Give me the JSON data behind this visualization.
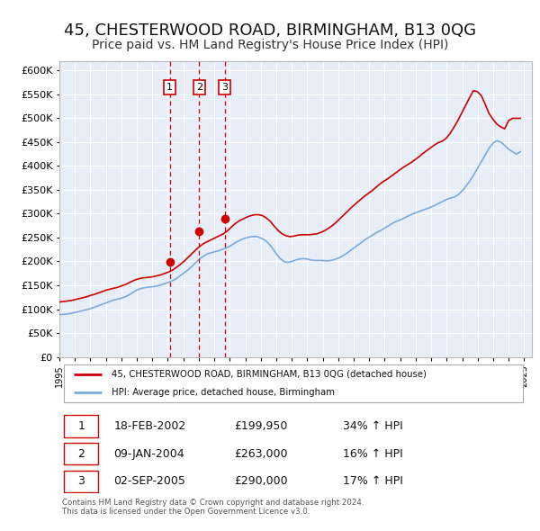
{
  "title": "45, CHESTERWOOD ROAD, BIRMINGHAM, B13 0QG",
  "subtitle": "Price paid vs. HM Land Registry's House Price Index (HPI)",
  "title_fontsize": 13,
  "subtitle_fontsize": 10,
  "bg_color": "#ffffff",
  "plot_bg_color": "#e8eef8",
  "grid_color": "#ffffff",
  "ylim": [
    0,
    620000
  ],
  "yticks": [
    0,
    50000,
    100000,
    150000,
    200000,
    250000,
    300000,
    350000,
    400000,
    450000,
    500000,
    550000,
    600000
  ],
  "xlim_start": 1995.0,
  "xlim_end": 2025.5,
  "legend_label_red": "45, CHESTERWOOD ROAD, BIRMINGHAM, B13 0QG (detached house)",
  "legend_label_blue": "HPI: Average price, detached house, Birmingham",
  "sale_dates": [
    2002.12,
    2004.03,
    2005.67
  ],
  "sale_prices": [
    199950,
    263000,
    290000
  ],
  "sale_labels": [
    "1",
    "2",
    "3"
  ],
  "vline_color": "#cc0000",
  "dot_color": "#cc0000",
  "red_line_color": "#cc0000",
  "blue_line_color": "#7aaadd",
  "table_rows": [
    [
      "1",
      "18-FEB-2002",
      "£199,950",
      "34% ↑ HPI"
    ],
    [
      "2",
      "09-JAN-2004",
      "£263,000",
      "16% ↑ HPI"
    ],
    [
      "3",
      "02-SEP-2005",
      "£290,000",
      "17% ↑ HPI"
    ]
  ],
  "footer_text": "Contains HM Land Registry data © Crown copyright and database right 2024.\nThis data is licensed under the Open Government Licence v3.0.",
  "hpi_y": [
    88000,
    89000,
    90000,
    91000,
    93000,
    95000,
    97000,
    99000,
    101000,
    104000,
    107000,
    110000,
    113000,
    116000,
    119000,
    121000,
    123000,
    126000,
    130000,
    135000,
    140000,
    143000,
    145000,
    146000,
    147000,
    148000,
    150000,
    153000,
    156000,
    159000,
    163000,
    169000,
    175000,
    181000,
    188000,
    196000,
    204000,
    210000,
    215000,
    218000,
    220000,
    222000,
    225000,
    228000,
    232000,
    237000,
    242000,
    246000,
    249000,
    251000,
    252000,
    252000,
    249000,
    245000,
    238000,
    228000,
    216000,
    206000,
    200000,
    198000,
    200000,
    203000,
    205000,
    206000,
    205000,
    203000,
    202000,
    202000,
    202000,
    201000,
    202000,
    204000,
    207000,
    211000,
    216000,
    222000,
    228000,
    234000,
    240000,
    246000,
    251000,
    256000,
    261000,
    265000,
    270000,
    275000,
    280000,
    284000,
    287000,
    291000,
    295000,
    299000,
    302000,
    305000,
    308000,
    311000,
    314000,
    318000,
    322000,
    326000,
    330000,
    333000,
    335000,
    340000,
    348000,
    358000,
    369000,
    382000,
    396000,
    410000,
    424000,
    438000,
    448000,
    453000,
    450000,
    443000,
    435000,
    430000,
    425000,
    430000
  ],
  "price_y": [
    115000,
    116000,
    117000,
    118000,
    120000,
    122000,
    124000,
    126000,
    129000,
    131000,
    134000,
    137000,
    140000,
    142000,
    144000,
    146000,
    149000,
    152000,
    156000,
    160000,
    163000,
    165000,
    166000,
    167000,
    168000,
    170000,
    172000,
    175000,
    178000,
    182000,
    188000,
    194000,
    201000,
    209000,
    217000,
    225000,
    232000,
    238000,
    242000,
    246000,
    250000,
    254000,
    258000,
    264000,
    272000,
    279000,
    285000,
    289000,
    293000,
    296000,
    298000,
    298000,
    296000,
    291000,
    284000,
    274000,
    265000,
    258000,
    254000,
    252000,
    253000,
    255000,
    256000,
    256000,
    256000,
    257000,
    258000,
    261000,
    265000,
    270000,
    276000,
    283000,
    291000,
    299000,
    307000,
    315000,
    322000,
    329000,
    336000,
    342000,
    348000,
    355000,
    362000,
    368000,
    373000,
    379000,
    385000,
    391000,
    397000,
    402000,
    407000,
    413000,
    419000,
    426000,
    432000,
    438000,
    444000,
    449000,
    452000,
    458000,
    468000,
    481000,
    495000,
    511000,
    527000,
    543000,
    558000,
    556000,
    548000,
    530000,
    510000,
    498000,
    488000,
    482000,
    478000,
    495000,
    500000,
    500000,
    500000
  ]
}
